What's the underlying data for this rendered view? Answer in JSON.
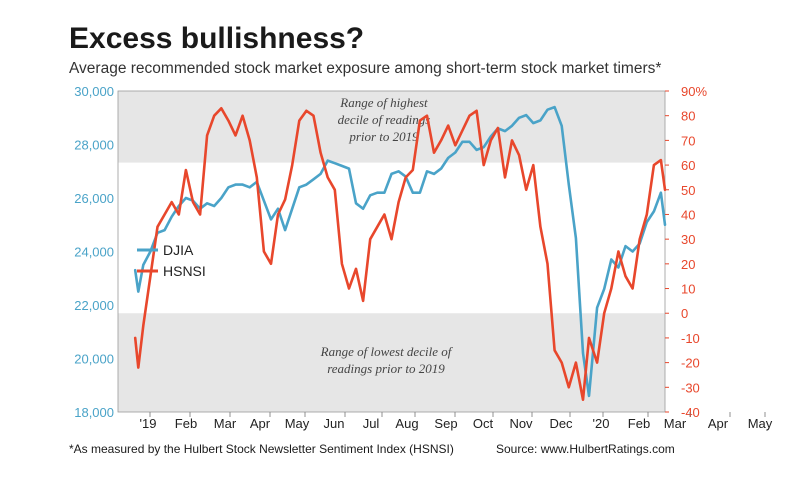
{
  "title": "Excess bullishness?",
  "subtitle": "Average recommended stock market exposure among short-term stock market timers*",
  "footnote": "*As measured by the Hulbert Stock Newsletter Sentiment Index (HSNSI)",
  "source": "Source: www.HulbertRatings.com",
  "chart_data": {
    "type": "line",
    "x_tick_labels": [
      "'19",
      "Feb",
      "Mar",
      "Apr",
      "May",
      "Jun",
      "Jul",
      "Aug",
      "Sep",
      "Oct",
      "Nov",
      "Dec",
      "'20",
      "Feb",
      "Mar",
      "Apr",
      "May"
    ],
    "y_left": {
      "ylim": [
        18000,
        30000
      ],
      "ticks": [
        18000,
        20000,
        22000,
        24000,
        26000,
        28000,
        30000
      ],
      "tick_labels": [
        "18,000",
        "20,000",
        "22,000",
        "24,000",
        "26,000",
        "28,000",
        "30,000"
      ],
      "color": "#4aa3c8"
    },
    "y_right": {
      "ylim": [
        -40,
        90
      ],
      "ticks": [
        -40,
        -30,
        -20,
        -10,
        0,
        10,
        20,
        30,
        40,
        50,
        60,
        70,
        80,
        90
      ],
      "tick_labels": [
        "-40",
        "-30",
        "-20",
        "-10",
        "0",
        "10",
        "20",
        "30",
        "40",
        "50",
        "60",
        "70",
        "80",
        "90%"
      ],
      "color": "#e8472c"
    },
    "bands": [
      {
        "name": "high",
        "axis": "right",
        "from": 61,
        "to": 90,
        "label": "Range of highest decile of readings prior to 2019"
      },
      {
        "name": "low",
        "axis": "right",
        "from": -40,
        "to": 0,
        "label": "Range of lowest decile of readings prior to 2019"
      }
    ],
    "legend": {
      "position": "middle-left",
      "entries": [
        "DJIA",
        "HSNSI"
      ]
    },
    "series": [
      {
        "name": "DJIA",
        "axis": "left",
        "color": "#4aa3c8",
        "x": [
          "2018-12-31",
          "2019-01-03",
          "2019-01-08",
          "2019-01-15",
          "2019-01-22",
          "2019-01-29",
          "2019-02-05",
          "2019-02-12",
          "2019-02-19",
          "2019-02-26",
          "2019-03-05",
          "2019-03-12",
          "2019-03-19",
          "2019-03-26",
          "2019-04-02",
          "2019-04-09",
          "2019-04-16",
          "2019-04-23",
          "2019-04-30",
          "2019-05-07",
          "2019-05-14",
          "2019-05-21",
          "2019-05-28",
          "2019-06-04",
          "2019-06-11",
          "2019-06-18",
          "2019-06-25",
          "2019-07-02",
          "2019-07-09",
          "2019-07-16",
          "2019-07-23",
          "2019-07-30",
          "2019-08-06",
          "2019-08-13",
          "2019-08-20",
          "2019-08-27",
          "2019-09-03",
          "2019-09-10",
          "2019-09-17",
          "2019-09-24",
          "2019-10-01",
          "2019-10-08",
          "2019-10-15",
          "2019-10-22",
          "2019-10-29",
          "2019-11-05",
          "2019-11-12",
          "2019-11-19",
          "2019-11-26",
          "2019-12-03",
          "2019-12-10",
          "2019-12-17",
          "2019-12-24",
          "2019-12-31",
          "2020-01-07",
          "2020-01-14",
          "2020-01-21",
          "2020-01-28",
          "2020-02-04",
          "2020-02-11",
          "2020-02-18",
          "2020-02-25",
          "2020-03-03",
          "2020-03-10",
          "2020-03-17",
          "2020-03-23",
          "2020-03-31",
          "2020-04-07",
          "2020-04-14",
          "2020-04-21",
          "2020-04-28",
          "2020-05-05",
          "2020-05-12",
          "2020-05-19",
          "2020-05-26",
          "2020-06-02",
          "2020-06-06"
        ],
        "y": [
          23300,
          22500,
          23500,
          24000,
          24700,
          24800,
          25300,
          25700,
          26000,
          25900,
          25600,
          25800,
          25700,
          26000,
          26400,
          26500,
          26500,
          26400,
          26600,
          25900,
          25200,
          25600,
          24800,
          25600,
          26400,
          26500,
          26700,
          26900,
          27400,
          27300,
          27200,
          27100,
          25800,
          25600,
          26100,
          26200,
          26200,
          26900,
          27000,
          26800,
          26200,
          26200,
          27000,
          26900,
          27100,
          27500,
          27700,
          28100,
          28100,
          27800,
          27900,
          28300,
          28600,
          28500,
          28700,
          29000,
          29100,
          28800,
          28900,
          29300,
          29400,
          28700,
          26500,
          24500,
          20200,
          18600,
          21900,
          22600,
          23700,
          23400,
          24200,
          24000,
          24300,
          25100,
          25500,
          26200,
          25000
        ]
      },
      {
        "name": "HSNSI",
        "axis": "right",
        "color": "#e8472c",
        "x": [
          "2018-12-31",
          "2019-01-03",
          "2019-01-08",
          "2019-01-15",
          "2019-01-22",
          "2019-01-29",
          "2019-02-05",
          "2019-02-12",
          "2019-02-19",
          "2019-02-26",
          "2019-03-05",
          "2019-03-12",
          "2019-03-19",
          "2019-03-26",
          "2019-04-02",
          "2019-04-09",
          "2019-04-16",
          "2019-04-23",
          "2019-04-30",
          "2019-05-07",
          "2019-05-14",
          "2019-05-21",
          "2019-05-28",
          "2019-06-04",
          "2019-06-11",
          "2019-06-18",
          "2019-06-25",
          "2019-07-02",
          "2019-07-09",
          "2019-07-16",
          "2019-07-23",
          "2019-07-30",
          "2019-08-06",
          "2019-08-13",
          "2019-08-20",
          "2019-08-27",
          "2019-09-03",
          "2019-09-10",
          "2019-09-17",
          "2019-09-24",
          "2019-10-01",
          "2019-10-08",
          "2019-10-15",
          "2019-10-22",
          "2019-10-29",
          "2019-11-05",
          "2019-11-12",
          "2019-11-19",
          "2019-11-26",
          "2019-12-03",
          "2019-12-10",
          "2019-12-17",
          "2019-12-24",
          "2019-12-31",
          "2020-01-07",
          "2020-01-14",
          "2020-01-21",
          "2020-01-28",
          "2020-02-04",
          "2020-02-11",
          "2020-02-18",
          "2020-02-25",
          "2020-03-03",
          "2020-03-10",
          "2020-03-17",
          "2020-03-23",
          "2020-03-31",
          "2020-04-07",
          "2020-04-14",
          "2020-04-21",
          "2020-04-28",
          "2020-05-05",
          "2020-05-12",
          "2020-05-19",
          "2020-05-26",
          "2020-06-02",
          "2020-06-06"
        ],
        "y": [
          -10,
          -22,
          -5,
          15,
          35,
          40,
          45,
          40,
          58,
          45,
          40,
          72,
          80,
          83,
          78,
          72,
          80,
          70,
          55,
          25,
          20,
          40,
          46,
          60,
          78,
          82,
          80,
          65,
          55,
          50,
          20,
          10,
          18,
          5,
          30,
          35,
          40,
          30,
          45,
          55,
          58,
          78,
          80,
          65,
          70,
          76,
          68,
          74,
          80,
          82,
          60,
          70,
          75,
          55,
          70,
          64,
          50,
          60,
          35,
          20,
          -15,
          -20,
          -30,
          -20,
          -35,
          -10,
          -20,
          0,
          10,
          25,
          15,
          10,
          30,
          40,
          60,
          62,
          50
        ]
      }
    ]
  }
}
